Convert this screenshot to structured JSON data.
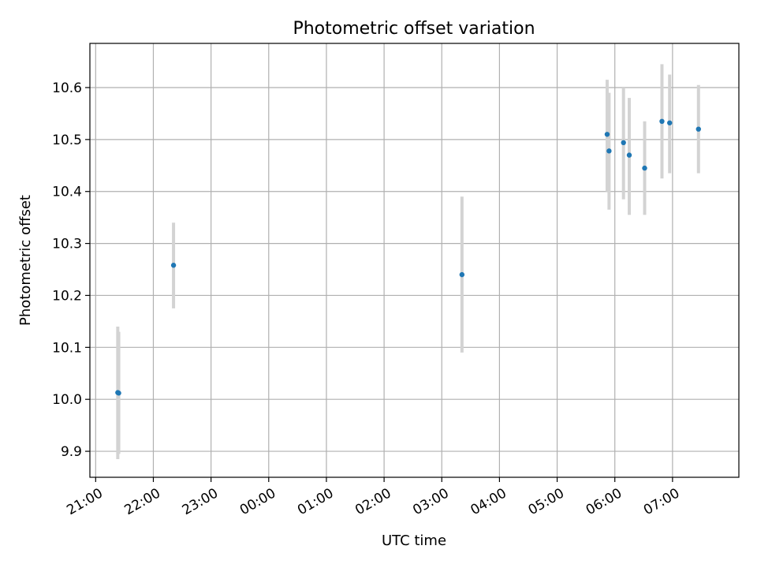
{
  "chart_data": {
    "type": "scatter",
    "title": "Photometric offset variation",
    "xlabel": "UTC time",
    "ylabel": "Photometric offset",
    "x_tick_labels": [
      "21:00",
      "22:00",
      "23:00",
      "00:00",
      "01:00",
      "02:00",
      "03:00",
      "04:00",
      "05:00",
      "06:00",
      "07:00"
    ],
    "y_tick_labels": [
      "9.9",
      "10.0",
      "10.1",
      "10.2",
      "10.3",
      "10.4",
      "10.5",
      "10.6"
    ],
    "y_ticks": [
      9.9,
      10.0,
      10.1,
      10.2,
      10.3,
      10.4,
      10.5,
      10.6
    ],
    "xlim": [
      "20:54",
      "08:09"
    ],
    "ylim": [
      9.85,
      10.685
    ],
    "grid": true,
    "colors": {
      "marker": "#1f77b4",
      "errorbar": "#d3d3d3",
      "grid": "#b0b0b0"
    },
    "series": [
      {
        "points": [
          {
            "time": "21:23",
            "y": 10.013,
            "y_low": 9.885,
            "y_high": 10.14
          },
          {
            "time": "21:24",
            "y": 10.012,
            "y_low": 9.895,
            "y_high": 10.13
          },
          {
            "time": "22:21",
            "y": 10.258,
            "y_low": 10.175,
            "y_high": 10.34
          },
          {
            "time": "03:21",
            "y": 10.24,
            "y_low": 10.09,
            "y_high": 10.39
          },
          {
            "time": "05:52",
            "y": 10.51,
            "y_low": 10.4,
            "y_high": 10.615
          },
          {
            "time": "05:54",
            "y": 10.478,
            "y_low": 10.365,
            "y_high": 10.59
          },
          {
            "time": "06:09",
            "y": 10.494,
            "y_low": 10.385,
            "y_high": 10.6
          },
          {
            "time": "06:15",
            "y": 10.47,
            "y_low": 10.355,
            "y_high": 10.58
          },
          {
            "time": "06:31",
            "y": 10.445,
            "y_low": 10.355,
            "y_high": 10.535
          },
          {
            "time": "06:49",
            "y": 10.535,
            "y_low": 10.425,
            "y_high": 10.645
          },
          {
            "time": "06:57",
            "y": 10.532,
            "y_low": 10.435,
            "y_high": 10.625
          },
          {
            "time": "07:27",
            "y": 10.52,
            "y_low": 10.435,
            "y_high": 10.605
          }
        ]
      }
    ]
  }
}
